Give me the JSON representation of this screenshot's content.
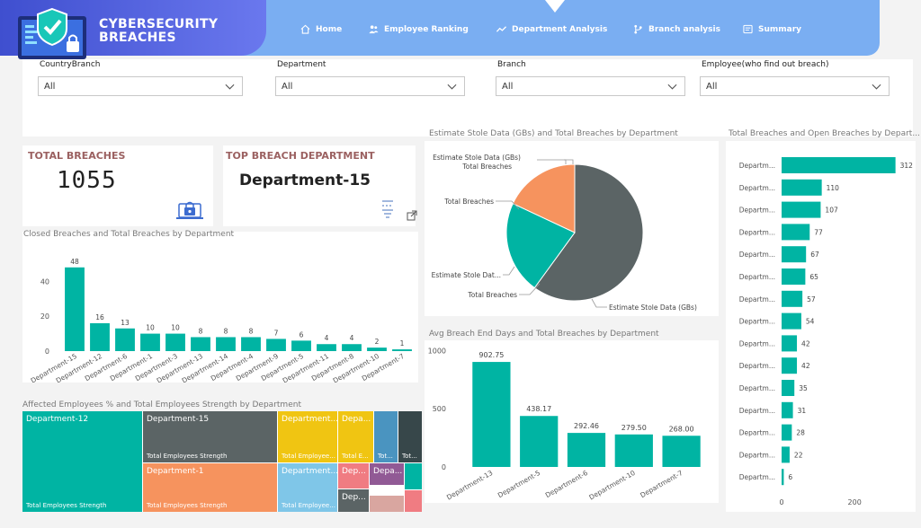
{
  "header": {
    "brand_line1": "CYBERSECURITY",
    "brand_line2": "BREACHES",
    "nav": [
      {
        "label": "Home",
        "icon": "home-icon"
      },
      {
        "label": "Employee Ranking",
        "icon": "people-icon"
      },
      {
        "label": "Department Analysis",
        "icon": "trend-icon"
      },
      {
        "label": "Branch analysis",
        "icon": "branch-icon"
      },
      {
        "label": "Summary",
        "icon": "summary-icon"
      }
    ],
    "active_nav": "Department Analysis"
  },
  "filters": [
    {
      "label": "CountryBranch",
      "value": "All"
    },
    {
      "label": "Department",
      "value": "All"
    },
    {
      "label": "Branch",
      "value": "All"
    },
    {
      "label": "Employee(who find out breach)",
      "value": "All"
    }
  ],
  "kpis": {
    "total_breaches": {
      "title": "TOTAL BREACHES",
      "value": "1055"
    },
    "top_department": {
      "title": "TOP BREACH DEPARTMENT",
      "value": "Department-15"
    }
  },
  "colors": {
    "teal": "#00b4a3",
    "grey": "#5b6465",
    "orange": "#f6935e",
    "yellow": "#f0c512",
    "lightblue": "#7fc6e8",
    "pink": "#f07c82",
    "purple": "#915a95",
    "blue": "#4a94c0",
    "accent": "#7aaef2",
    "brand": "#4a58d8"
  },
  "chart_data": [
    {
      "type": "bar",
      "title": "Closed Breaches and Total Breaches by Department",
      "categories": [
        "Department-15",
        "Department-12",
        "Department-6",
        "Department-1",
        "Department-3",
        "Department-13",
        "Department-14",
        "Department-4",
        "Department-9",
        "Department-5",
        "Department-11",
        "Department-8",
        "Department-10",
        "Department-7"
      ],
      "values": [
        48,
        16,
        13,
        10,
        10,
        8,
        8,
        8,
        7,
        6,
        4,
        4,
        2,
        1
      ],
      "yticks": [
        0,
        20,
        40
      ],
      "ylim": [
        0,
        52
      ]
    },
    {
      "type": "pie",
      "title": "Estimate Stole Data (GBs) and Total Breaches by Department",
      "slices": [
        {
          "label": "Estimate Stole Data (GBs)",
          "value": 60,
          "color": "#5b6465"
        },
        {
          "label": "Total Breaches",
          "value": 22,
          "color": "#00b4a3"
        },
        {
          "label": "Estimate Stole Data (GBs)",
          "value": 18,
          "color": "#f6935e"
        }
      ],
      "callouts": [
        "Total Breaches",
        "Estimate Stole Data (GBs)",
        "Total Breaches",
        "Estimate Stole Dat...",
        "Total Breaches",
        "Estimate Stole Data (GBs)"
      ]
    },
    {
      "type": "bar",
      "title": "Avg Breach End Days and Total Breaches by Department",
      "categories": [
        "Department-13",
        "Department-5",
        "Department-6",
        "Department-10",
        "Department-7"
      ],
      "values": [
        902.75,
        438.17,
        292.46,
        279.5,
        268.0
      ],
      "labels": [
        "902.75",
        "438.17",
        "292.46",
        "279.50",
        "268.00"
      ],
      "yticks": [
        0,
        500,
        1000
      ],
      "ylim": [
        0,
        1050
      ]
    },
    {
      "type": "bar",
      "orientation": "horizontal",
      "title": "Total Breaches and Open Breaches by Depart...",
      "category_label": "Departm...",
      "values": [
        312,
        110,
        107,
        77,
        67,
        65,
        57,
        54,
        42,
        42,
        35,
        31,
        28,
        22,
        6
      ],
      "xticks": [
        0,
        200
      ],
      "xlim": [
        0,
        340
      ]
    },
    {
      "type": "heatmap",
      "subtype": "treemap",
      "title": "Affected Employees % and Total Employees Strength by Department",
      "tiles": [
        {
          "name": "Department-12",
          "sub": "Total Employees Strength",
          "color": "#00b4a3"
        },
        {
          "name": "Department-15",
          "sub": "Total Employees Strength",
          "color": "#5b6465"
        },
        {
          "name": "Department-1",
          "sub": "Total Employees Strength",
          "color": "#f6935e"
        },
        {
          "name": "Department...",
          "sub": "Total Employee...",
          "color": "#f0c512"
        },
        {
          "name": "Department...",
          "sub": "Total Employee...",
          "color": "#7fc6e8"
        },
        {
          "name": "Depa...",
          "sub": "Total E...",
          "color": "#f0c512"
        },
        {
          "name": "",
          "sub": "Tot...",
          "color": "#4a94c0"
        },
        {
          "name": "",
          "sub": "Tot...",
          "color": "#37474a"
        },
        {
          "name": "Dep...",
          "sub": "",
          "color": "#f07c82"
        },
        {
          "name": "Depa...",
          "sub": "",
          "color": "#915a95"
        },
        {
          "name": "Dep...",
          "sub": "",
          "color": "#5b6465"
        },
        {
          "name": "",
          "sub": "",
          "color": "#d9a6a0"
        },
        {
          "name": "",
          "sub": "",
          "color": "#00b4a3"
        },
        {
          "name": "",
          "sub": "",
          "color": "#f07c82"
        }
      ]
    }
  ]
}
